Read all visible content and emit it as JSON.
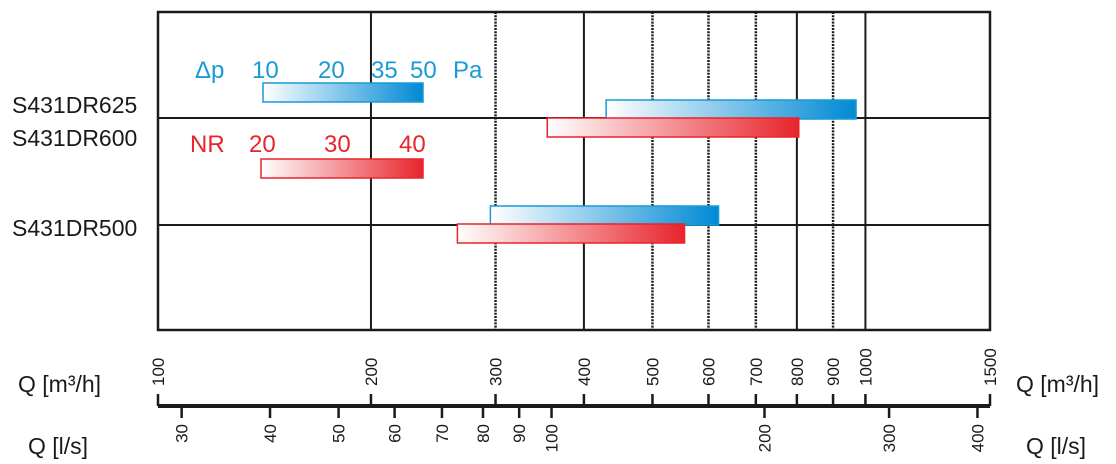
{
  "chart_data": {
    "type": "bar",
    "x_scale": "log",
    "xlim": [
      100,
      1500
    ],
    "grid": true,
    "rows": [
      {
        "name": "S431DR625"
      },
      {
        "name": "S431DR600"
      },
      {
        "name": "S431DR500"
      }
    ],
    "series": [
      {
        "row": "S431DR625",
        "kind": "pressure",
        "x_start": 430,
        "x_end": 970
      },
      {
        "row": "S431DR600",
        "kind": "noise",
        "x_start": 355,
        "x_end": 805
      },
      {
        "row": "S431DR500",
        "kind": "pressure",
        "x_start": 295,
        "x_end": 620
      },
      {
        "row": "S431DR500",
        "kind": "noise",
        "x_start": 265,
        "x_end": 555
      }
    ],
    "legend": {
      "pressure": {
        "symbol": "Δp",
        "ticks": [
          "10",
          "20",
          "35",
          "50"
        ],
        "unit": "Pa",
        "color": "#1a9ad6",
        "color_end": "#0089d4"
      },
      "noise": {
        "symbol": "NR",
        "ticks": [
          "20",
          "30",
          "40"
        ],
        "color": "#e8242c",
        "color_end": "#e8242c"
      }
    },
    "axis_m3h": {
      "label_left": "Q [m³/h]",
      "label_right": "Q [m³/h]",
      "ticks": [
        100,
        200,
        300,
        400,
        500,
        600,
        700,
        800,
        900,
        1000,
        1500
      ],
      "tick_labels": [
        "100",
        "200",
        "300",
        "400",
        "500",
        "600",
        "700",
        "800",
        "900",
        "1000",
        "1500"
      ]
    },
    "axis_ls": {
      "label_left": "Q [l/s]",
      "label_right": "Q [l/s]",
      "ticks": [
        30,
        40,
        50,
        60,
        70,
        80,
        90,
        100,
        200,
        300,
        400
      ],
      "tick_labels": [
        "30",
        "40",
        "50",
        "60",
        "70",
        "80",
        "90",
        "100",
        "200",
        "300",
        "400"
      ]
    }
  }
}
